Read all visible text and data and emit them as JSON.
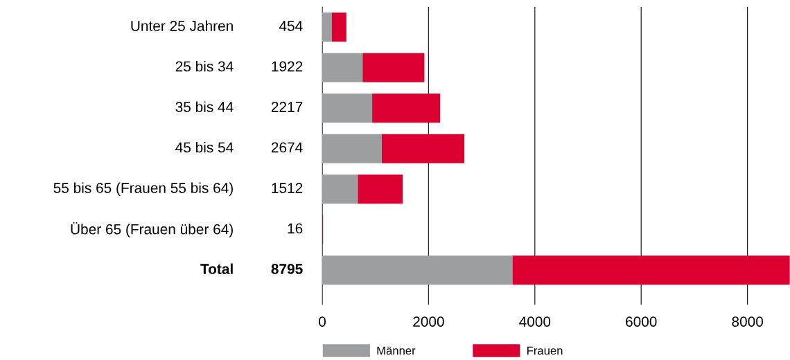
{
  "chart_data": {
    "type": "bar",
    "orientation": "horizontal",
    "stacked": true,
    "categories": [
      "Unter 25 Jahren",
      "25 bis 34",
      "35 bis 44",
      "45 bis 54",
      "55 bis 65 (Frauen 55 bis 64)",
      "Über 65 (Frauen über 64)",
      "Total"
    ],
    "series": [
      {
        "name": "Männer",
        "color": "#9d9ea0",
        "values": [
          180,
          760,
          940,
          1120,
          670,
          0,
          3580
        ]
      },
      {
        "name": "Frauen",
        "color": "#dc0030",
        "values": [
          274,
          1162,
          1277,
          1554,
          842,
          16,
          5215
        ]
      }
    ],
    "totals": [
      "454",
      "1922",
      "2217",
      "2674",
      "1512",
      "16",
      "8795"
    ],
    "xlim": [
      0,
      8800
    ],
    "xticks": [
      0,
      2000,
      4000,
      6000,
      8000
    ],
    "grid": "x",
    "legend": "bottom"
  }
}
